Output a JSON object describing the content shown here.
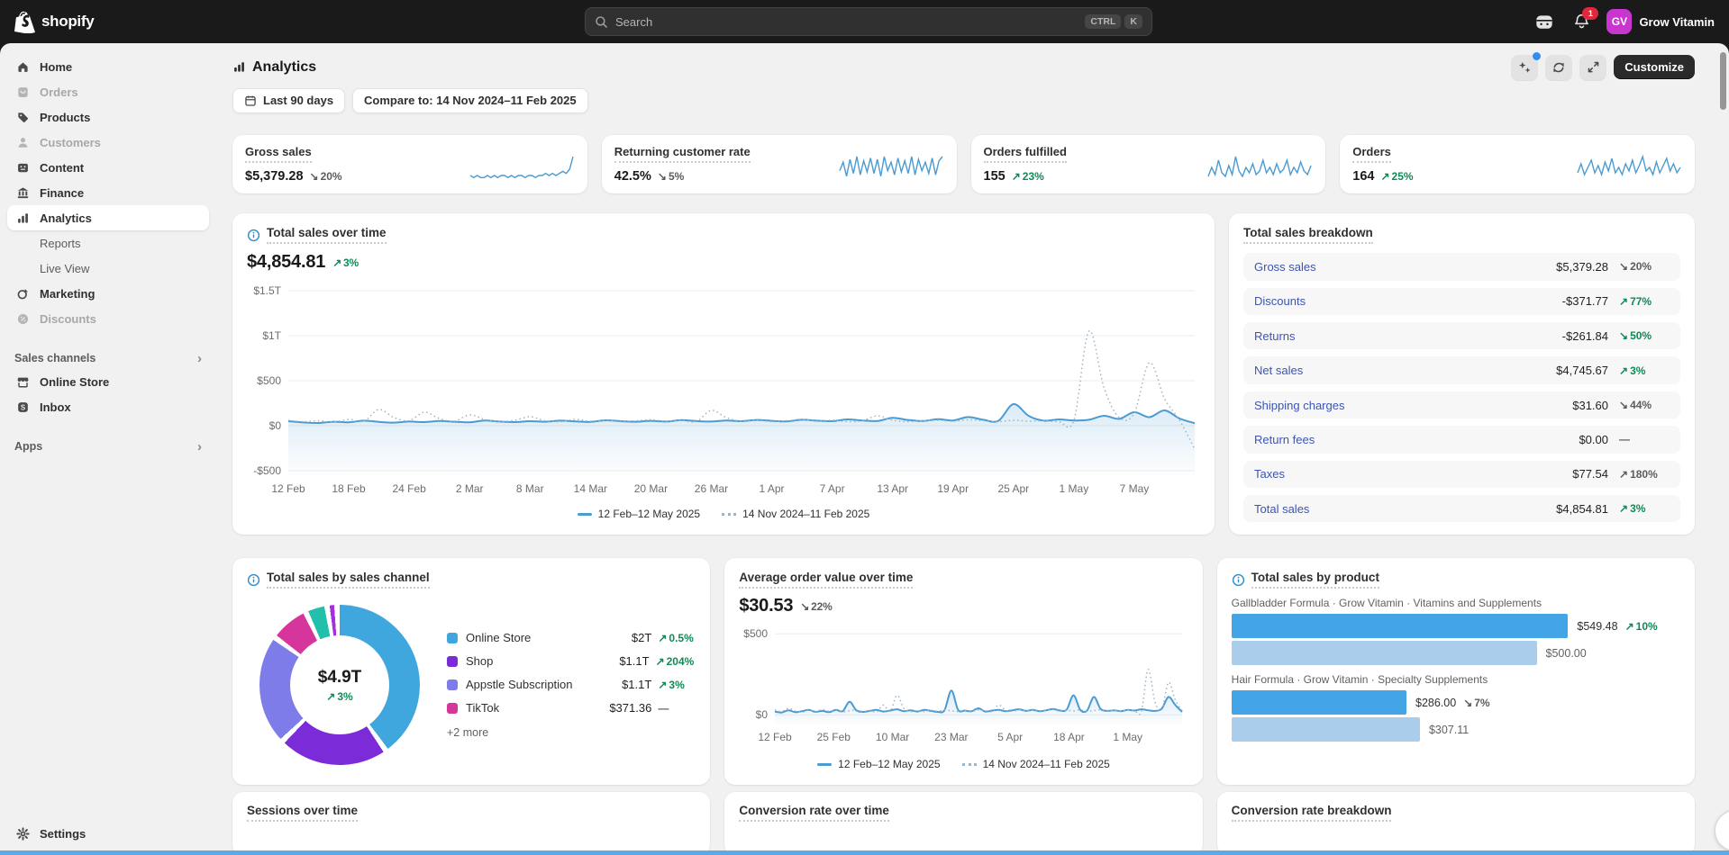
{
  "colors": {
    "link": "#3b55b4",
    "green": "#0f8a56",
    "gray_delta": "#5c5c5c",
    "line_current": "#4a9bd2",
    "line_previous": "#9db4c4",
    "bar_current": "#43a4e6",
    "bar_previous": "#a9cdeb",
    "info_icon": "#2e8ccb",
    "avatar_bg": "#c936cf",
    "badge": "#e0283c",
    "bottom_strip": "#5ea9e4"
  },
  "topbar": {
    "brand": "shopify",
    "search": {
      "placeholder": "Search",
      "keys": [
        "CTRL",
        "K"
      ]
    },
    "notification_count": "1",
    "store": {
      "initials": "GV",
      "name": "Grow Vitamin"
    }
  },
  "sidebar": {
    "items": [
      {
        "id": "home",
        "label": "Home",
        "icon": "home",
        "state": "normal"
      },
      {
        "id": "orders",
        "label": "Orders",
        "icon": "orders",
        "state": "disabled"
      },
      {
        "id": "products",
        "label": "Products",
        "icon": "products",
        "state": "normal"
      },
      {
        "id": "customers",
        "label": "Customers",
        "icon": "customers",
        "state": "disabled"
      },
      {
        "id": "content",
        "label": "Content",
        "icon": "content",
        "state": "normal"
      },
      {
        "id": "finance",
        "label": "Finance",
        "icon": "finance",
        "state": "normal"
      },
      {
        "id": "analytics",
        "label": "Analytics",
        "icon": "analytics",
        "state": "active"
      },
      {
        "id": "reports",
        "label": "Reports",
        "icon": "",
        "state": "sub"
      },
      {
        "id": "live-view",
        "label": "Live View",
        "icon": "",
        "state": "sub"
      },
      {
        "id": "marketing",
        "label": "Marketing",
        "icon": "marketing",
        "state": "normal"
      },
      {
        "id": "discounts",
        "label": "Discounts",
        "icon": "discounts",
        "state": "disabled"
      }
    ],
    "sales_channels_label": "Sales channels",
    "channel_items": [
      {
        "id": "online-store",
        "label": "Online Store",
        "icon": "store"
      },
      {
        "id": "inbox",
        "label": "Inbox",
        "icon": "inbox"
      }
    ],
    "apps_label": "Apps",
    "settings_label": "Settings"
  },
  "page": {
    "title": "Analytics",
    "customize_label": "Customize",
    "date_filter": "Last 90 days",
    "compare_filter": "Compare to: 14 Nov 2024–11 Feb 2025"
  },
  "kpis": [
    {
      "title": "Gross sales",
      "value": "$5,379.28",
      "delta": {
        "arrow": "↘",
        "text": "20%",
        "tone": "gray"
      }
    },
    {
      "title": "Returning customer rate",
      "value": "42.5%",
      "delta": {
        "arrow": "↘",
        "text": "5%",
        "tone": "gray"
      }
    },
    {
      "title": "Orders fulfilled",
      "value": "155",
      "delta": {
        "arrow": "↗",
        "text": "23%",
        "tone": "green"
      }
    },
    {
      "title": "Orders",
      "value": "164",
      "delta": {
        "arrow": "↗",
        "text": "25%",
        "tone": "green"
      }
    }
  ],
  "total_sales": {
    "title": "Total sales over time",
    "value": "$4,854.81",
    "delta": {
      "arrow": "↗",
      "text": "3%",
      "tone": "green"
    },
    "legend": [
      {
        "style": "solid",
        "label": "12 Feb–12 May 2025"
      },
      {
        "style": "dotted",
        "label": "14 Nov 2024–11 Feb 2025"
      }
    ]
  },
  "breakdown": {
    "title": "Total sales breakdown",
    "rows": [
      {
        "label": "Gross sales",
        "value": "$5,379.28",
        "delta": {
          "arrow": "↘",
          "text": "20%",
          "tone": "gray"
        }
      },
      {
        "label": "Discounts",
        "value": "-$371.77",
        "delta": {
          "arrow": "↗",
          "text": "77%",
          "tone": "green"
        }
      },
      {
        "label": "Returns",
        "value": "-$261.84",
        "delta": {
          "arrow": "↘",
          "text": "50%",
          "tone": "green"
        }
      },
      {
        "label": "Net sales",
        "value": "$4,745.67",
        "delta": {
          "arrow": "↗",
          "text": "3%",
          "tone": "green"
        }
      },
      {
        "label": "Shipping charges",
        "value": "$31.60",
        "delta": {
          "arrow": "↘",
          "text": "44%",
          "tone": "gray"
        }
      },
      {
        "label": "Return fees",
        "value": "$0.00",
        "delta": {
          "arrow": "",
          "text": "—",
          "tone": "gray"
        }
      },
      {
        "label": "Taxes",
        "value": "$77.54",
        "delta": {
          "arrow": "↗",
          "text": "180%",
          "tone": "gray"
        }
      },
      {
        "label": "Total sales",
        "value": "$4,854.81",
        "delta": {
          "arrow": "↗",
          "text": "3%",
          "tone": "green"
        }
      }
    ]
  },
  "by_channel": {
    "title": "Total sales by sales channel",
    "center_value": "$4.9T",
    "center_delta": {
      "arrow": "↗",
      "text": "3%",
      "tone": "green"
    },
    "rows": [
      {
        "label": "Online Store",
        "color": "#3fa7de",
        "value": "$2T",
        "delta": {
          "arrow": "↗",
          "text": "0.5%",
          "tone": "green"
        }
      },
      {
        "label": "Shop",
        "color": "#7b2bd7",
        "value": "$1.1T",
        "delta": {
          "arrow": "↗",
          "text": "204%",
          "tone": "green"
        }
      },
      {
        "label": "Appstle Subscription",
        "color": "#7e7ce9",
        "value": "$1.1T",
        "delta": {
          "arrow": "↗",
          "text": "3%",
          "tone": "green"
        }
      },
      {
        "label": "TikTok",
        "color": "#d6369b",
        "value": "$371.36",
        "delta": {
          "arrow": "",
          "text": "—",
          "tone": "gray"
        }
      }
    ],
    "more_label": "+2 more"
  },
  "aov": {
    "title": "Average order value over time",
    "value": "$30.53",
    "delta": {
      "arrow": "↘",
      "text": "22%",
      "tone": "gray"
    },
    "legend": [
      {
        "style": "solid",
        "label": "12 Feb–12 May 2025"
      },
      {
        "style": "dotted",
        "label": "14 Nov 2024–11 Feb 2025"
      }
    ]
  },
  "by_product": {
    "title": "Total sales by product",
    "products": [
      {
        "name": "Gallbladder Formula · Grow Vitamin · Vitamins and Supplements",
        "current": {
          "value": "$549.48",
          "delta": {
            "arrow": "↗",
            "text": "10%",
            "tone": "green"
          },
          "pct": 75
        },
        "previous": {
          "value": "$500.00",
          "pct": 68
        }
      },
      {
        "name": "Hair Formula · Grow Vitamin · Specialty Supplements",
        "current": {
          "value": "$286.00",
          "delta": {
            "arrow": "↘",
            "text": "7%",
            "tone": "gray"
          },
          "pct": 39
        },
        "previous": {
          "value": "$307.11",
          "pct": 42
        }
      }
    ]
  },
  "bottom_cards": [
    {
      "title": "Sessions over time"
    },
    {
      "title": "Conversion rate over time"
    },
    {
      "title": "Conversion rate breakdown"
    }
  ],
  "chart_data": {
    "total_sales_over_time": {
      "type": "line",
      "title": "Total sales over time",
      "ymin": -560,
      "ymax": 1560,
      "y_ticks": [
        {
          "label": "$1.5T",
          "v": 1500
        },
        {
          "label": "$1T",
          "v": 1000
        },
        {
          "label": "$500",
          "v": 500
        },
        {
          "label": "$0",
          "v": 0
        },
        {
          "label": "-$500",
          "v": -500
        }
      ],
      "x_tick_labels": [
        "12 Feb",
        "18 Feb",
        "24 Feb",
        "2 Mar",
        "8 Mar",
        "14 Mar",
        "20 Mar",
        "26 Mar",
        "1 Apr",
        "7 Apr",
        "13 Apr",
        "19 Apr",
        "25 Apr",
        "1 May",
        "7 May"
      ],
      "x_tick_step_days": 6,
      "span_days": 90,
      "series": [
        {
          "name": "12 Feb–12 May 2025",
          "style": "solid",
          "values": [
            50,
            36,
            30,
            44,
            38,
            56,
            42,
            34,
            46,
            40,
            52,
            44,
            38,
            58,
            46,
            40,
            50,
            44,
            56,
            48,
            42,
            60,
            50,
            44,
            54,
            46,
            62,
            52,
            46,
            58,
            50,
            64,
            54,
            48,
            66,
            56,
            50,
            70,
            58,
            52,
            88,
            64,
            52,
            72,
            58,
            96,
            66,
            54,
            240,
            110,
            56,
            70,
            58,
            66,
            110,
            76,
            150,
            95,
            170,
            80,
            28
          ]
        },
        {
          "name": "14 Nov 2024–11 Feb 2025",
          "style": "dotted",
          "values": [
            60,
            45,
            55,
            40,
            70,
            50,
            180,
            90,
            55,
            150,
            80,
            50,
            120,
            70,
            45,
            60,
            100,
            55,
            45,
            70,
            50,
            60,
            45,
            55,
            65,
            50,
            60,
            45,
            170,
            90,
            50,
            60,
            45,
            55,
            70,
            50,
            60,
            45,
            55,
            110,
            60,
            45,
            55,
            60,
            50,
            65,
            55,
            45,
            60,
            50,
            55,
            45,
            60,
            1050,
            420,
            90,
            140,
            700,
            300,
            60,
            -260
          ]
        }
      ]
    },
    "average_order_value": {
      "type": "line",
      "title": "Average order value over time",
      "ymin": -60,
      "ymax": 540,
      "y_ticks": [
        {
          "label": "$500",
          "v": 500
        },
        {
          "label": "$0",
          "v": 0
        }
      ],
      "x_tick_labels": [
        "12 Feb",
        "25 Feb",
        "10 Mar",
        "23 Mar",
        "5 Apr",
        "18 Apr",
        "1 May"
      ],
      "x_tick_step_days": 13,
      "span_days": 90,
      "series": [
        {
          "name": "12 Feb–12 May 2025",
          "style": "solid",
          "values": [
            20,
            14,
            28,
            16,
            22,
            30,
            18,
            24,
            16,
            30,
            22,
            80,
            28,
            18,
            24,
            30,
            20,
            26,
            34,
            22,
            28,
            20,
            30,
            24,
            18,
            28,
            150,
            30,
            26,
            22,
            40,
            20,
            26,
            30,
            22,
            28,
            34,
            24,
            30,
            22,
            28,
            36,
            26,
            32,
            120,
            30,
            26,
            110,
            36,
            24,
            28,
            22,
            30,
            26,
            34,
            28,
            24,
            38,
            110,
            60,
            18
          ]
        },
        {
          "name": "14 Nov 2024–11 Feb 2025",
          "style": "dotted",
          "values": [
            30,
            20,
            40,
            24,
            16,
            28,
            20,
            32,
            22,
            28,
            18,
            24,
            30,
            20,
            26,
            18,
            60,
            22,
            120,
            40,
            20,
            26,
            20,
            28,
            22,
            30,
            24,
            20,
            28,
            22,
            30,
            26,
            20,
            60,
            28,
            22,
            30,
            24,
            28,
            20,
            26,
            32,
            22,
            28,
            24,
            30,
            22,
            26,
            32,
            24,
            28,
            22,
            30,
            24,
            20,
            280,
            80,
            30,
            200,
            90,
            26
          ]
        }
      ]
    },
    "sales_by_channel_donut": {
      "type": "pie",
      "title": "Total sales by sales channel",
      "center": "$4.9T",
      "segments": [
        {
          "label": "Online Store",
          "color": "#3fa7de",
          "pct": 40.8
        },
        {
          "label": "Shop",
          "color": "#7b2bd7",
          "pct": 22.4
        },
        {
          "label": "Appstle Subscription",
          "color": "#7e7ce9",
          "pct": 22.4
        },
        {
          "label": "TikTok",
          "color": "#d6369b",
          "pct": 8.0
        },
        {
          "label": "other-1",
          "color": "#22bfab",
          "pct": 4.4
        },
        {
          "label": "other-2",
          "color": "#a62ee2",
          "pct": 2.0
        }
      ]
    },
    "sales_by_product_bars": {
      "type": "bar",
      "title": "Total sales by product",
      "items": [
        {
          "name": "Gallbladder Formula · Grow Vitamin · Vitamins and Supplements",
          "current": 549.48,
          "previous": 500.0
        },
        {
          "name": "Hair Formula · Grow Vitamin · Specialty Supplements",
          "current": 286.0,
          "previous": 307.11
        }
      ]
    },
    "kpi_sparklines": {
      "gross_sales": [
        3,
        2,
        3,
        2,
        2,
        3,
        2,
        3,
        2,
        3,
        3,
        2,
        3,
        2,
        3,
        3,
        2,
        3,
        3,
        2,
        3,
        3,
        4,
        3,
        4,
        3,
        4,
        5,
        4,
        6,
        12
      ],
      "returning_customer_rate": [
        8,
        14,
        4,
        16,
        6,
        18,
        5,
        15,
        7,
        17,
        6,
        16,
        4,
        18,
        8,
        14,
        5,
        17,
        7,
        15,
        6,
        18,
        5,
        16,
        8,
        14,
        6,
        17,
        5,
        15,
        18
      ],
      "orders_fulfilled": [
        3,
        8,
        4,
        12,
        5,
        3,
        9,
        4,
        14,
        6,
        3,
        8,
        5,
        10,
        4,
        6,
        12,
        5,
        8,
        4,
        10,
        5,
        7,
        12,
        4,
        8,
        5,
        11,
        6,
        4,
        9
      ],
      "orders": [
        5,
        10,
        4,
        8,
        12,
        5,
        9,
        4,
        11,
        6,
        13,
        5,
        8,
        4,
        10,
        6,
        12,
        5,
        9,
        14,
        6,
        8,
        4,
        11,
        5,
        9,
        13,
        6,
        10,
        5,
        8
      ]
    }
  }
}
